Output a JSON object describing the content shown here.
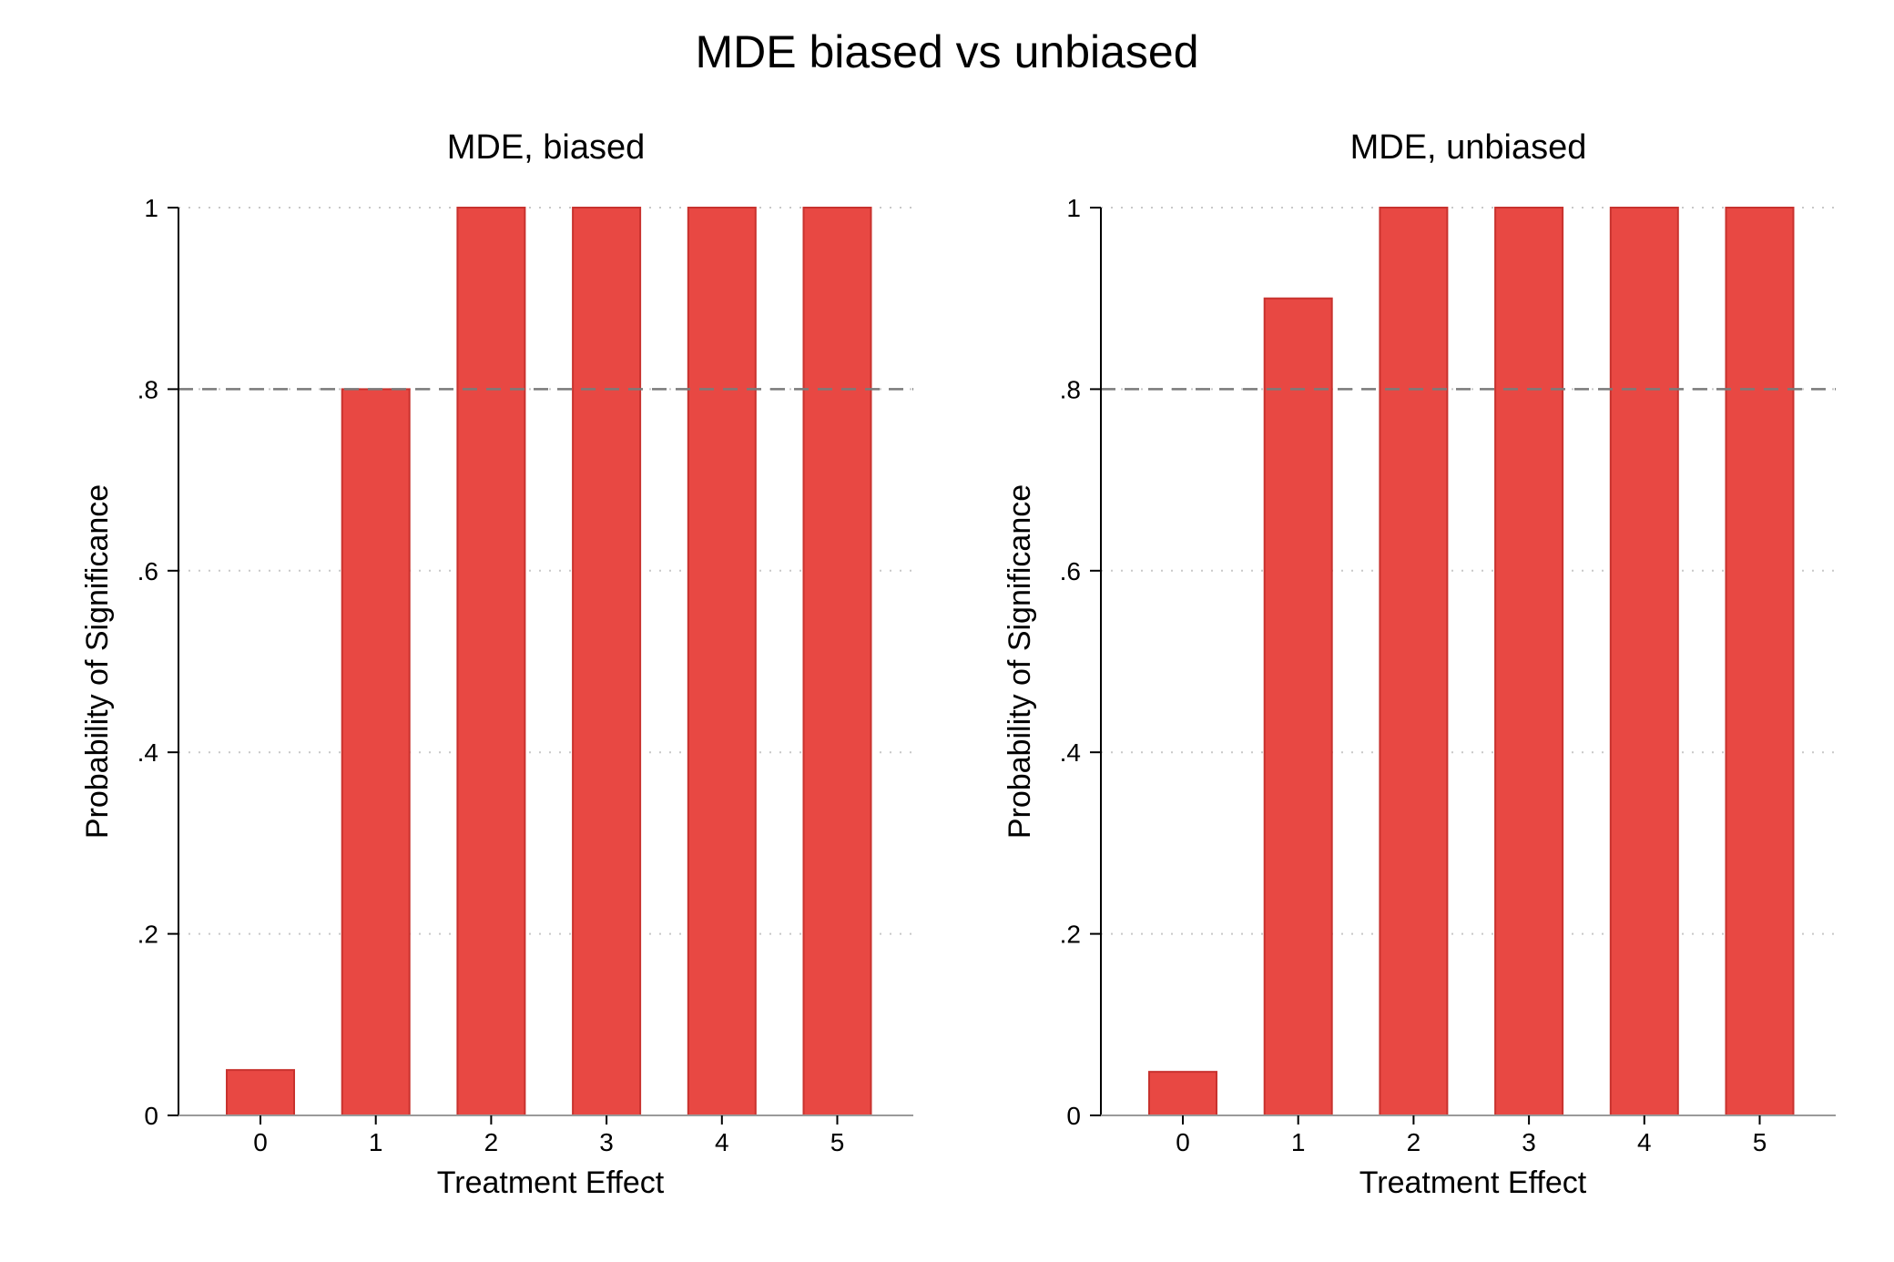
{
  "title": "MDE biased vs unbiased",
  "colors": {
    "bar_fill": "#e84843",
    "bar_stroke": "#c8322e",
    "reference_line": "#7a7a7a",
    "grid": "#c8c8c8",
    "axis": "#000000"
  },
  "chart_data": [
    {
      "type": "bar",
      "title": "MDE, biased",
      "xlabel": "Treatment Effect",
      "ylabel": "Probability of Significance",
      "categories": [
        "0",
        "1",
        "2",
        "3",
        "4",
        "5"
      ],
      "values": [
        0.05,
        0.8,
        1,
        1,
        1,
        1
      ],
      "ylim": [
        0,
        1
      ],
      "yticks": [
        0,
        0.2,
        0.4,
        0.6,
        0.8,
        1
      ],
      "ytick_labels": [
        "0",
        ".2",
        ".4",
        ".6",
        ".8",
        "1"
      ],
      "reference_line": 0.8,
      "grid": true
    },
    {
      "type": "bar",
      "title": "MDE, unbiased",
      "xlabel": "Treatment Effect",
      "ylabel": "Probability of Significance",
      "categories": [
        "0",
        "1",
        "2",
        "3",
        "4",
        "5"
      ],
      "values": [
        0.048,
        0.9,
        1,
        1,
        1,
        1
      ],
      "ylim": [
        0,
        1
      ],
      "yticks": [
        0,
        0.2,
        0.4,
        0.6,
        0.8,
        1
      ],
      "ytick_labels": [
        "0",
        ".2",
        ".4",
        ".6",
        ".8",
        "1"
      ],
      "reference_line": 0.8,
      "grid": true
    }
  ]
}
